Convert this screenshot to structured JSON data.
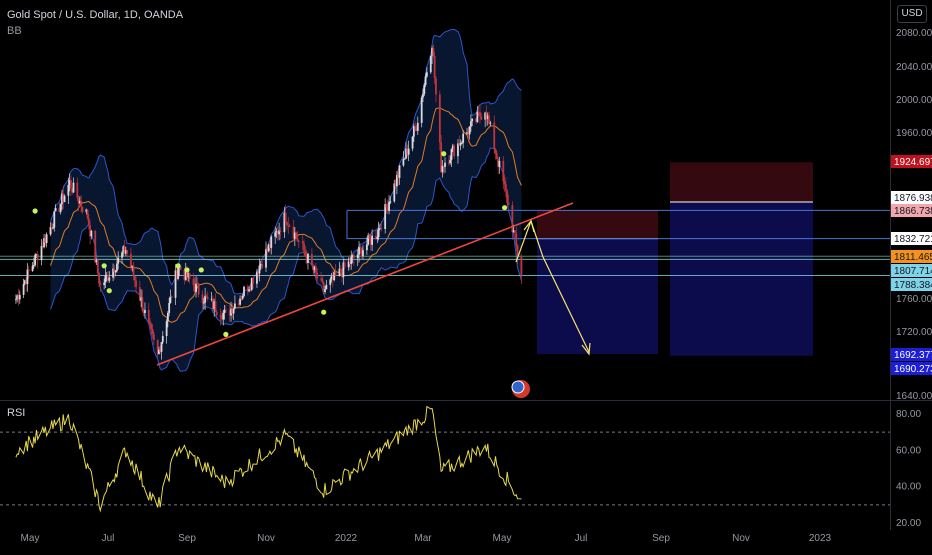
{
  "header": {
    "symbol_title": "Gold Spot / U.S. Dollar, 1D, OANDA",
    "indicator_bb": "BB",
    "currency": "USD"
  },
  "rsi_panel": {
    "label": "RSI"
  },
  "colors": {
    "background": "#000000",
    "candle_up": "#d9d9dc",
    "candle_down": "#c2353a",
    "bb_band": "#2a56c8",
    "bb_fill": "#0b1a38",
    "bb_basis": "#e07b22",
    "trendline": "#f0473a",
    "arrow": "#f5e56b",
    "dot": "#c6f25a",
    "rsi_line": "#e6d84b",
    "position_stop": "#3a0a12",
    "position_target": "#0d0d55"
  },
  "chart_data": [
    {
      "type": "candlestick",
      "series_name": "Gold Spot / U.S. Dollar, 1D, OANDA",
      "price_ticks": [
        "2080.000",
        "2040.000",
        "2000.000",
        "1960.000",
        "1760.000",
        "1720.000",
        "1640.000"
      ],
      "time_ticks": [
        "May",
        "Jul",
        "Sep",
        "Nov",
        "2022",
        "Mar",
        "May",
        "Jul",
        "Sep",
        "Nov",
        "2023"
      ],
      "ylim": [
        1640,
        2100
      ],
      "grid": false,
      "overlays": [
        "Bollinger Bands",
        "ascending trendline",
        "long position",
        "projection arrows"
      ],
      "price_tags": [
        {
          "value": "1924.697",
          "color": "#c0111e",
          "text_color": "#ffffff"
        },
        {
          "value": "1876.938",
          "color": "#ffffff",
          "text_color": "#131722"
        },
        {
          "value": "1866.738",
          "color": "#f2a7ad",
          "text_color": "#131722"
        },
        {
          "value": "1832.721",
          "color": "#ffffff",
          "text_color": "#131722"
        },
        {
          "value": "1811.465",
          "color": "#f5921e",
          "text_color": "#131722"
        },
        {
          "value": "1807.714",
          "color": "#7fd3e8",
          "text_color": "#131722"
        },
        {
          "value": "1788.384",
          "color": "#7fd3e8",
          "text_color": "#131722"
        },
        {
          "value": "1692.377",
          "color": "#1d1dd8",
          "text_color": "#ffffff"
        },
        {
          "value": "1690.273",
          "color": "#1d1dd8",
          "text_color": "#ffffff"
        }
      ],
      "levels": {
        "rsi_level_prices": [
          1807.714,
          1788.384
        ]
      },
      "approx_path": [
        {
          "date": "2021-04-20",
          "price": 1760
        },
        {
          "date": "2021-05-15",
          "price": 1840
        },
        {
          "date": "2021-06-01",
          "price": 1900
        },
        {
          "date": "2021-06-15",
          "price": 1860
        },
        {
          "date": "2021-06-25",
          "price": 1775
        },
        {
          "date": "2021-07-15",
          "price": 1820
        },
        {
          "date": "2021-08-09",
          "price": 1690
        },
        {
          "date": "2021-08-25",
          "price": 1800
        },
        {
          "date": "2021-09-15",
          "price": 1760
        },
        {
          "date": "2021-10-01",
          "price": 1740
        },
        {
          "date": "2021-10-20",
          "price": 1780
        },
        {
          "date": "2021-11-16",
          "price": 1860
        },
        {
          "date": "2021-12-15",
          "price": 1770
        },
        {
          "date": "2022-01-25",
          "price": 1840
        },
        {
          "date": "2022-02-24",
          "price": 1970
        },
        {
          "date": "2022-03-08",
          "price": 2070
        },
        {
          "date": "2022-03-15",
          "price": 1920
        },
        {
          "date": "2022-04-18",
          "price": 1990
        },
        {
          "date": "2022-05-05",
          "price": 1880
        },
        {
          "date": "2022-05-16",
          "price": 1790
        }
      ]
    },
    {
      "type": "line",
      "series_name": "RSI",
      "y_ticks": [
        "80.00",
        "60.00",
        "40.00",
        "20.00"
      ],
      "ylim": [
        20,
        85
      ],
      "reference_levels": [
        70,
        30
      ],
      "approx_path": [
        {
          "date": "2021-04-20",
          "value": 60
        },
        {
          "date": "2021-06-01",
          "value": 78
        },
        {
          "date": "2021-06-25",
          "value": 30
        },
        {
          "date": "2021-07-15",
          "value": 60
        },
        {
          "date": "2021-08-09",
          "value": 28
        },
        {
          "date": "2021-08-25",
          "value": 62
        },
        {
          "date": "2021-10-01",
          "value": 42
        },
        {
          "date": "2021-11-16",
          "value": 68
        },
        {
          "date": "2021-12-15",
          "value": 38
        },
        {
          "date": "2022-01-25",
          "value": 58
        },
        {
          "date": "2022-03-08",
          "value": 82
        },
        {
          "date": "2022-03-15",
          "value": 48
        },
        {
          "date": "2022-04-18",
          "value": 62
        },
        {
          "date": "2022-05-16",
          "value": 32
        }
      ]
    }
  ]
}
